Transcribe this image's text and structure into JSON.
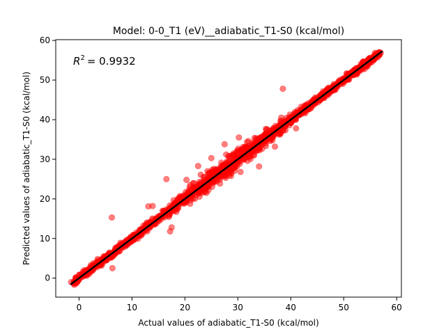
{
  "chart_data": {
    "type": "scatter",
    "title": "Model: 0-0_T1 (eV)__adiabatic_T1-S0 (kcal/mol)",
    "xlabel": "Actual values of adiabatic_T1-S0 (kcal/mol)",
    "ylabel": "Predicted values of adiabatic_T1-S0 (kcal/mol)",
    "annotation": {
      "r2_label": "R",
      "r2_sup": "2",
      "r2_value": "= 0.9932"
    },
    "xlim": [
      -4.4,
      60.9
    ],
    "ylim": [
      -4.8,
      60.2
    ],
    "x_ticks": [
      0,
      10,
      20,
      30,
      40,
      50,
      60
    ],
    "y_ticks": [
      0,
      10,
      20,
      30,
      40,
      50,
      60
    ],
    "x_tick_labels": [
      "0",
      "10",
      "20",
      "30",
      "40",
      "50",
      "60"
    ],
    "y_tick_labels": [
      "0",
      "10",
      "20",
      "30",
      "40",
      "50",
      "60"
    ],
    "grid": false,
    "legend": "none",
    "colors": {
      "points": "#ff0000",
      "fit_line": "#000000"
    },
    "fit_line": {
      "x": [
        -1.5,
        57.2
      ],
      "y": [
        -1.5,
        57.2
      ]
    },
    "series": [
      {
        "points": [
          [
            -1.5,
            -1.0
          ],
          [
            0.5,
            1.0
          ],
          [
            1.2,
            0.8
          ],
          [
            2.0,
            2.5
          ],
          [
            2.8,
            3.4
          ],
          [
            3.5,
            4.8
          ],
          [
            4.2,
            4.3
          ],
          [
            5.0,
            5.5
          ],
          [
            5.6,
            6.2
          ],
          [
            6.3,
            2.5
          ],
          [
            6.2,
            15.3
          ],
          [
            6.8,
            7.2
          ],
          [
            7.5,
            8.0
          ],
          [
            8.2,
            8.6
          ],
          [
            9.0,
            9.4
          ],
          [
            9.7,
            10.1
          ],
          [
            10.4,
            10.8
          ],
          [
            11.2,
            11.5
          ],
          [
            12.0,
            12.4
          ],
          [
            12.8,
            13.0
          ],
          [
            13.1,
            18.1
          ],
          [
            13.9,
            18.2
          ],
          [
            14.5,
            14.9
          ],
          [
            15.3,
            15.6
          ],
          [
            16.0,
            16.8
          ],
          [
            16.8,
            17.1
          ],
          [
            17.5,
            17.8
          ],
          [
            17.2,
            11.8
          ],
          [
            17.5,
            12.8
          ],
          [
            19.0,
            19.4
          ],
          [
            20.0,
            19.8
          ],
          [
            20.5,
            21.0
          ],
          [
            21.0,
            23.5
          ],
          [
            22.0,
            22.2
          ],
          [
            22.5,
            28.3
          ],
          [
            23.0,
            26.1
          ],
          [
            23.8,
            24.0
          ],
          [
            24.5,
            24.8
          ],
          [
            25.0,
            30.3
          ],
          [
            25.5,
            25.2
          ],
          [
            26.2,
            26.6
          ],
          [
            27.0,
            27.3
          ],
          [
            27.8,
            31.2
          ],
          [
            28.5,
            28.2
          ],
          [
            29.2,
            29.7
          ],
          [
            30.0,
            30.3
          ],
          [
            30.5,
            26.8
          ],
          [
            31.0,
            31.3
          ],
          [
            31.8,
            32.0
          ],
          [
            32.5,
            33.0
          ],
          [
            33.2,
            33.6
          ],
          [
            34.0,
            28.2
          ],
          [
            34.5,
            35.0
          ],
          [
            35.2,
            36.0
          ],
          [
            36.0,
            36.3
          ],
          [
            36.8,
            37.2
          ],
          [
            37.5,
            38.0
          ],
          [
            38.2,
            40.5
          ],
          [
            39.0,
            39.2
          ],
          [
            40.0,
            40.3
          ],
          [
            41.0,
            37.8
          ],
          [
            41.5,
            42.0
          ],
          [
            42.2,
            42.8
          ],
          [
            43.0,
            43.4
          ],
          [
            44.0,
            44.5
          ],
          [
            45.0,
            45.0
          ],
          [
            46.0,
            46.5
          ],
          [
            47.0,
            47.3
          ],
          [
            48.0,
            48.4
          ],
          [
            49.0,
            49.6
          ],
          [
            50.0,
            50.3
          ],
          [
            51.0,
            51.4
          ],
          [
            52.0,
            52.6
          ],
          [
            53.0,
            53.3
          ],
          [
            54.0,
            54.5
          ],
          [
            55.0,
            55.6
          ],
          [
            56.0,
            56.5
          ],
          [
            57.0,
            56.9
          ],
          [
            38.5,
            47.8
          ],
          [
            45.5,
            45.0
          ],
          [
            20.3,
            24.8
          ],
          [
            16.5,
            25.0
          ],
          [
            37.0,
            33.2
          ],
          [
            27.5,
            33.8
          ],
          [
            30.2,
            35.5
          ],
          [
            8.0,
            8.6
          ]
        ]
      }
    ]
  }
}
